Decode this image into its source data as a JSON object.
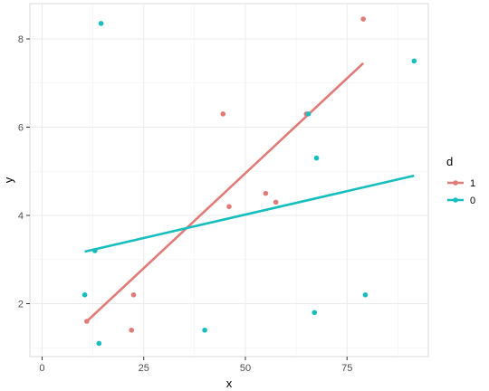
{
  "chart_data": {
    "type": "scatter",
    "xlabel": "x",
    "ylabel": "y",
    "xlim": [
      -3,
      95
    ],
    "ylim": [
      0.8,
      8.8
    ],
    "x_ticks": [
      0,
      25,
      50,
      75
    ],
    "y_ticks": [
      2,
      4,
      6,
      8
    ],
    "grid": true,
    "legend": {
      "title": "d",
      "position": "right"
    },
    "series": [
      {
        "name": "1",
        "color": "#E07B77",
        "points": [
          {
            "x": 11,
            "y": 1.6
          },
          {
            "x": 22,
            "y": 1.4
          },
          {
            "x": 22.5,
            "y": 2.2
          },
          {
            "x": 44.5,
            "y": 6.3
          },
          {
            "x": 46,
            "y": 4.2
          },
          {
            "x": 55,
            "y": 4.5
          },
          {
            "x": 57.5,
            "y": 4.3
          },
          {
            "x": 65,
            "y": 6.3
          },
          {
            "x": 79,
            "y": 8.45
          }
        ],
        "fit": {
          "x": [
            11,
            79
          ],
          "y": [
            1.6,
            7.45
          ]
        }
      },
      {
        "name": "0",
        "color": "#18BDBD",
        "points": [
          {
            "x": 10.5,
            "y": 2.2
          },
          {
            "x": 13,
            "y": 3.2
          },
          {
            "x": 14,
            "y": 1.1
          },
          {
            "x": 14.5,
            "y": 8.35
          },
          {
            "x": 40,
            "y": 1.4
          },
          {
            "x": 65.5,
            "y": 6.3
          },
          {
            "x": 67,
            "y": 1.8
          },
          {
            "x": 67.5,
            "y": 5.3
          },
          {
            "x": 79.5,
            "y": 2.2
          },
          {
            "x": 91.5,
            "y": 7.5
          }
        ],
        "fit": {
          "x": [
            10.5,
            91.5
          ],
          "y": [
            3.18,
            4.9
          ]
        }
      }
    ]
  }
}
